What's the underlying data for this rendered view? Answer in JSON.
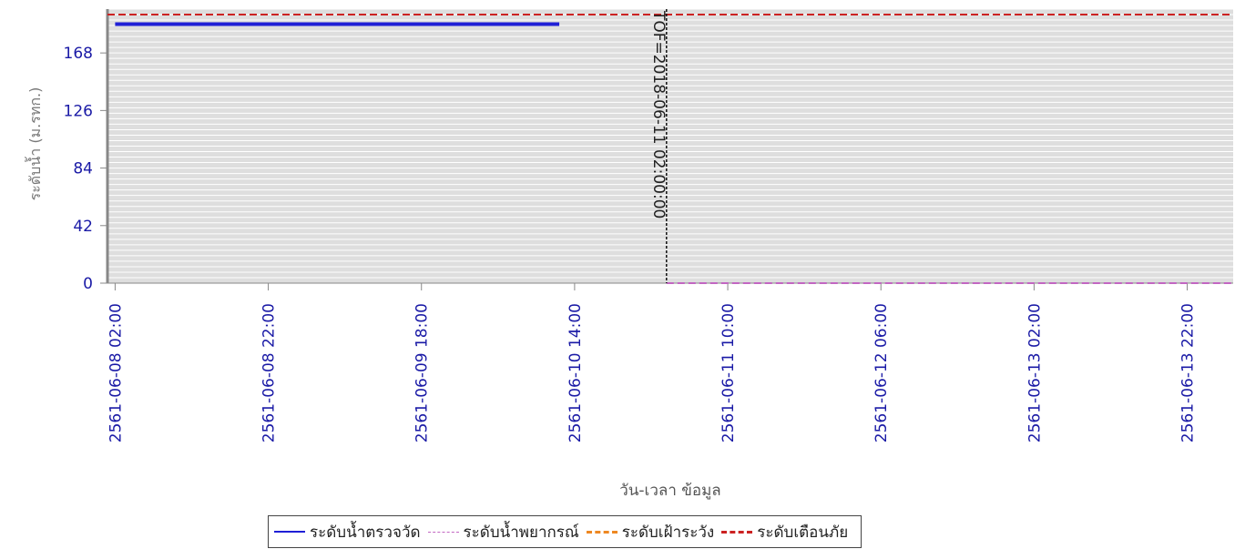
{
  "chart_data": {
    "type": "line",
    "title": "",
    "ylabel": "ระดับน้ำ (ม.รทก.)",
    "xlabel": "วัน-เวลา ข้อมูล",
    "ylim": [
      0,
      200
    ],
    "yticks": [
      0,
      42,
      84,
      126,
      168
    ],
    "x_tick_labels": [
      "2561-06-08 02:00",
      "2561-06-08 22:00",
      "2561-06-09 18:00",
      "2561-06-10 14:00",
      "2561-06-11 10:00",
      "2561-06-12 06:00",
      "2561-06-13 02:00",
      "2561-06-13 22:00"
    ],
    "x_range_hours": [
      -1,
      146
    ],
    "tof_label": "TOF=2018-06-11 02:00:00",
    "tof_hours": 72,
    "grid": true,
    "legend_position": "bottom",
    "series": [
      {
        "name": "ระดับน้ำตรวจวัด",
        "color": "#1f1fd6",
        "style": "solid",
        "x_hours": [
          0,
          58
        ],
        "y": [
          189,
          189
        ]
      },
      {
        "name": "ระดับน้ำพยากรณ์",
        "color": "#c266c2",
        "style": "dashed",
        "x_hours": [
          72,
          146
        ],
        "y": [
          0,
          0
        ]
      },
      {
        "name": "ระดับเฝ้าระวัง",
        "color": "#ee8822",
        "style": "dashed",
        "x_hours": [],
        "y": []
      },
      {
        "name": "ระดับเตือนภัย",
        "color": "#cc2222",
        "style": "dashed",
        "x_hours": [
          -1,
          146
        ],
        "y": [
          196,
          196
        ]
      }
    ]
  }
}
